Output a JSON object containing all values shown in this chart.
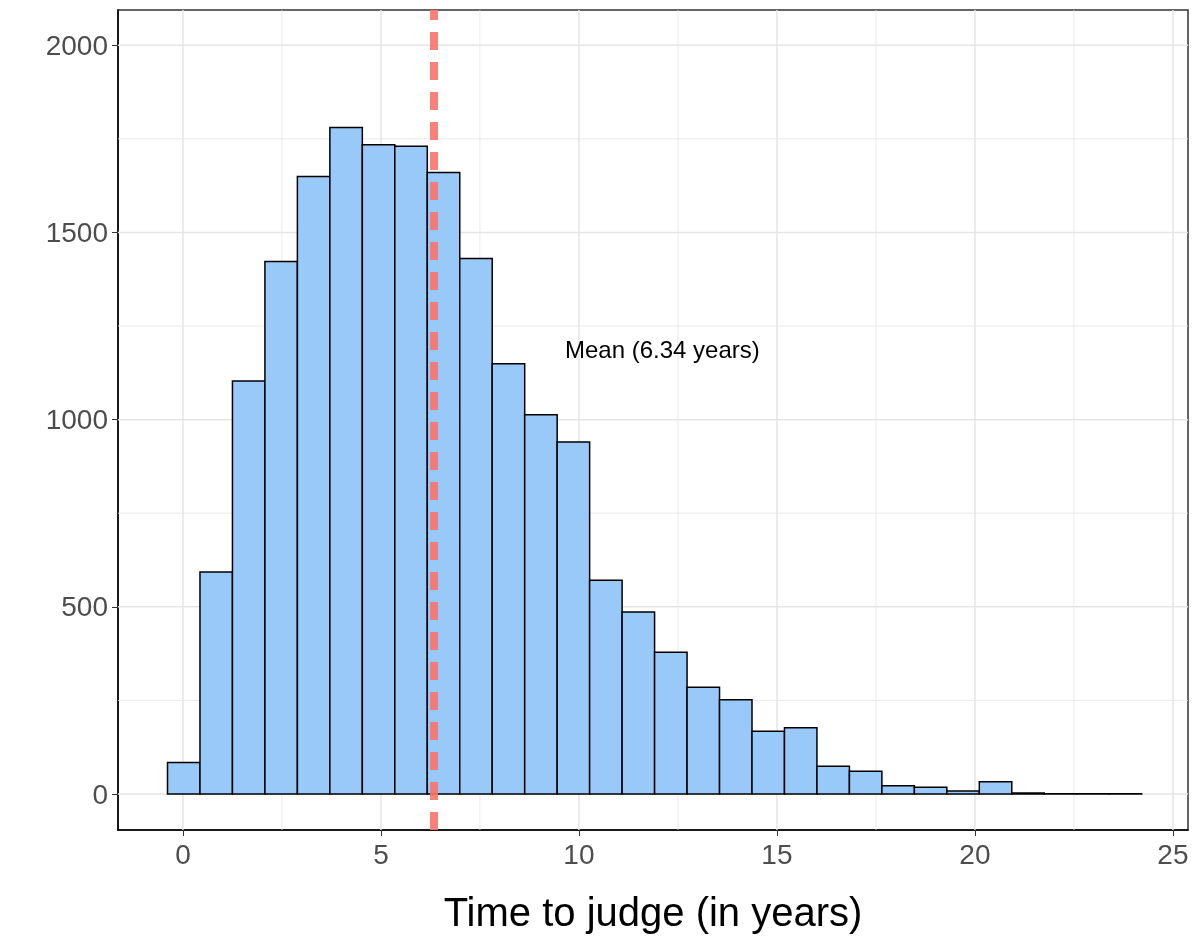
{
  "chart_data": {
    "type": "histogram",
    "xlabel": "Time to judge (in years)",
    "bins": [
      -0.39,
      0.43,
      1.25,
      2.07,
      2.89,
      3.71,
      4.53,
      5.35,
      6.17,
      6.99,
      7.81,
      8.63,
      9.45,
      10.27,
      11.09,
      11.91,
      12.73,
      13.55,
      14.37,
      15.19,
      16.01,
      16.83,
      17.65,
      18.47,
      19.29,
      20.11,
      20.93,
      21.75,
      22.57,
      23.39,
      24.21
    ],
    "values": [
      84,
      593,
      1103,
      1422,
      1649,
      1780,
      1734,
      1730,
      1660,
      1430,
      1149,
      1013,
      940,
      571,
      486,
      379,
      285,
      252,
      168,
      177,
      74,
      61,
      22,
      18,
      8,
      33,
      3,
      1,
      1,
      1
    ],
    "color": "#99c9f9",
    "xlim": [
      -1.64,
      25.38
    ],
    "xticks": [
      0,
      5,
      10,
      15,
      20,
      25
    ],
    "ylim": [
      -96,
      2094
    ],
    "yticks": [
      0,
      500,
      1000,
      1500,
      2000
    ],
    "grid": true,
    "ref_lines": [
      {
        "axis": "x",
        "value": 6.34,
        "color": "#f8766d",
        "line_style": "dashed"
      }
    ],
    "annotations": [
      "Mean (6.34 years)"
    ]
  }
}
